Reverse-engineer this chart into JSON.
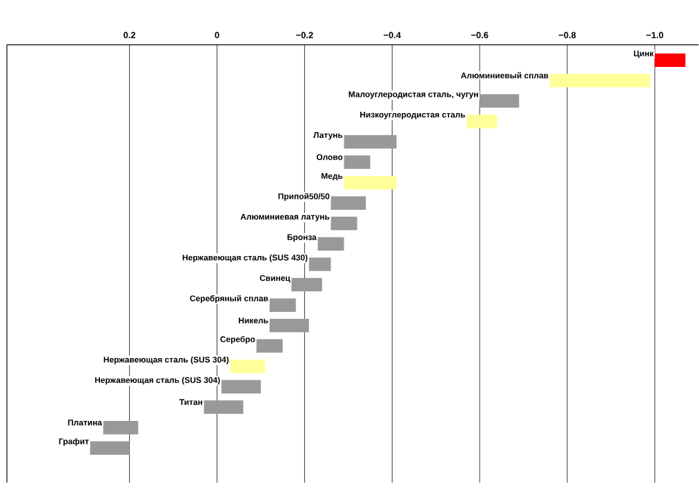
{
  "chart_data": {
    "type": "bar",
    "orientation": "horizontal",
    "categories": [
      "Цинк",
      "Алюминиевый сплав",
      "Малоуглеродистая сталь, чугун",
      "Низкоуглеродистая сталь",
      "Латунь",
      "Олово",
      "Медь",
      "Припой50/50",
      "Алюминиевая латунь",
      "Бронза",
      "Нержавеющая сталь (SUS 430)",
      "Свинец",
      "Серебряный сплав",
      "Никель",
      "Серебро",
      "Нержавеющая сталь (SUS 304)",
      "Нержавеющая сталь (SUS 304)",
      "Титан",
      "Платина",
      "Графит"
    ],
    "base": [
      -1.0,
      -0.76,
      -0.6,
      -0.57,
      -0.29,
      -0.29,
      -0.29,
      -0.26,
      -0.26,
      -0.23,
      -0.21,
      -0.17,
      -0.12,
      -0.12,
      -0.09,
      -0.03,
      -0.01,
      0.03,
      0.26,
      0.29
    ],
    "values": [
      -0.07,
      -0.23,
      -0.09,
      -0.07,
      -0.12,
      -0.06,
      -0.12,
      -0.08,
      -0.06,
      -0.06,
      -0.05,
      -0.07,
      -0.06,
      -0.09,
      -0.06,
      -0.08,
      -0.09,
      -0.09,
      -0.08,
      -0.09
    ],
    "colors": [
      "#ff0000",
      "#ffff99",
      "#999999",
      "#ffff99",
      "#999999",
      "#999999",
      "#ffff99",
      "#999999",
      "#999999",
      "#999999",
      "#999999",
      "#999999",
      "#999999",
      "#999999",
      "#999999",
      "#ffff99",
      "#999999",
      "#999999",
      "#999999",
      "#999999"
    ],
    "xlim": [
      0.48,
      -1.1
    ],
    "xticks": [
      0.2,
      0,
      {
        "value": -0.2,
        "label": "−0.2"
      },
      {
        "value": -0.4,
        "label": "−0.4"
      },
      {
        "value": -0.6,
        "label": "−0.6"
      },
      {
        "value": -0.8,
        "label": "−0.8"
      },
      {
        "value": -1.0,
        "label": "−1.0"
      }
    ],
    "grid": "x"
  }
}
